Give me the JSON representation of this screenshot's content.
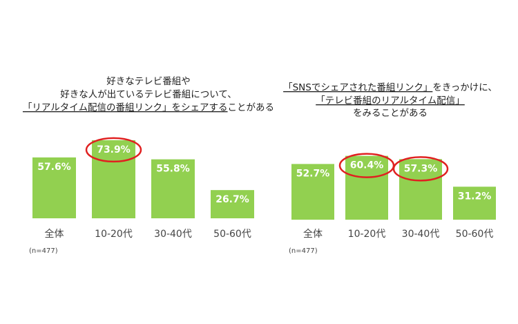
{
  "chart_data": [
    {
      "type": "bar",
      "title_lines": [
        [
          {
            "text": "好きなテレビ番組や"
          }
        ],
        [
          {
            "text": "好きな人が出ているテレビ番組について、"
          }
        ],
        [
          {
            "text": "「リアルタイム配信の番組リンク」をシェアする",
            "underline": true
          },
          {
            "text": "ことがある"
          }
        ]
      ],
      "categories": [
        "全体",
        "10-20代",
        "30-40代",
        "50-60代"
      ],
      "values": [
        57.6,
        73.9,
        55.8,
        26.7
      ],
      "value_labels": [
        "57.6%",
        "73.9%",
        "55.8%",
        "26.7%"
      ],
      "color": "#92d050",
      "highlight": [
        1
      ],
      "highlight_color": "#e02020",
      "note": "(n=477)"
    },
    {
      "type": "bar",
      "title_lines": [
        [
          {
            "text": "「SNSでシェアされた番組リンク」",
            "underline": true
          },
          {
            "text": "をきっかけに、"
          }
        ],
        [
          {
            "text": "「テレビ番組のリアルタイム配信」",
            "underline": true
          }
        ],
        [
          {
            "text": "をみることがある"
          }
        ]
      ],
      "categories": [
        "全体",
        "10-20代",
        "30-40代",
        "50-60代"
      ],
      "values": [
        52.7,
        60.4,
        57.3,
        31.2
      ],
      "value_labels": [
        "52.7%",
        "60.4%",
        "57.3%",
        "31.2%"
      ],
      "color": "#92d050",
      "highlight": [
        1,
        2
      ],
      "highlight_color": "#e02020",
      "note": "(n=477)"
    }
  ]
}
